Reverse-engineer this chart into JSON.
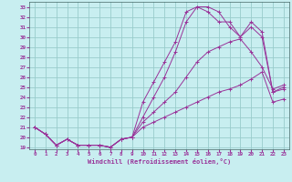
{
  "xlabel": "Windchill (Refroidissement éolien,°C)",
  "bg_color": "#c8eef0",
  "line_color": "#993399",
  "grid_color": "#99cccc",
  "xlim": [
    -0.5,
    23.5
  ],
  "ylim": [
    18.8,
    33.5
  ],
  "xticks": [
    0,
    1,
    2,
    3,
    4,
    5,
    6,
    7,
    8,
    9,
    10,
    11,
    12,
    13,
    14,
    15,
    16,
    17,
    18,
    19,
    20,
    21,
    22,
    23
  ],
  "yticks": [
    19,
    20,
    21,
    22,
    23,
    24,
    25,
    26,
    27,
    28,
    29,
    30,
    31,
    32,
    33
  ],
  "series": [
    {
      "x": [
        0,
        1,
        2,
        3,
        4,
        5,
        6,
        7,
        8,
        9,
        10,
        11,
        12,
        13,
        14,
        15,
        16,
        17,
        18,
        19,
        20,
        21,
        22,
        23
      ],
      "y": [
        21.0,
        20.3,
        19.2,
        19.8,
        19.2,
        19.2,
        19.2,
        19.0,
        19.8,
        20.0,
        21.0,
        21.5,
        22.0,
        22.5,
        23.0,
        23.5,
        24.0,
        24.5,
        24.8,
        25.2,
        25.8,
        26.5,
        23.5,
        23.8
      ]
    },
    {
      "x": [
        0,
        1,
        2,
        3,
        4,
        5,
        6,
        7,
        8,
        9,
        10,
        11,
        12,
        13,
        14,
        15,
        16,
        17,
        18,
        19,
        20,
        21,
        22,
        23
      ],
      "y": [
        21.0,
        20.3,
        19.2,
        19.8,
        19.2,
        19.2,
        19.2,
        19.0,
        19.8,
        20.0,
        21.5,
        22.5,
        23.5,
        24.5,
        26.0,
        27.5,
        28.5,
        29.0,
        29.5,
        29.8,
        28.5,
        27.0,
        24.8,
        25.2
      ]
    },
    {
      "x": [
        0,
        1,
        2,
        3,
        4,
        5,
        6,
        7,
        8,
        9,
        10,
        11,
        12,
        13,
        14,
        15,
        16,
        17,
        18,
        19,
        20,
        21,
        22,
        23
      ],
      "y": [
        21.0,
        20.3,
        19.2,
        19.8,
        19.2,
        19.2,
        19.2,
        19.0,
        19.8,
        20.0,
        22.0,
        24.0,
        26.0,
        28.5,
        31.5,
        33.0,
        33.0,
        32.5,
        31.0,
        30.0,
        31.5,
        30.5,
        24.5,
        25.0
      ]
    },
    {
      "x": [
        0,
        1,
        2,
        3,
        4,
        5,
        6,
        7,
        8,
        9,
        10,
        11,
        12,
        13,
        14,
        15,
        16,
        17,
        18,
        19,
        20,
        21,
        22,
        23
      ],
      "y": [
        21.0,
        20.3,
        19.2,
        19.8,
        19.2,
        19.2,
        19.2,
        19.0,
        19.8,
        20.0,
        23.5,
        25.5,
        27.5,
        29.5,
        32.5,
        33.0,
        32.5,
        31.5,
        31.5,
        30.0,
        31.0,
        30.0,
        24.5,
        24.8
      ]
    }
  ]
}
